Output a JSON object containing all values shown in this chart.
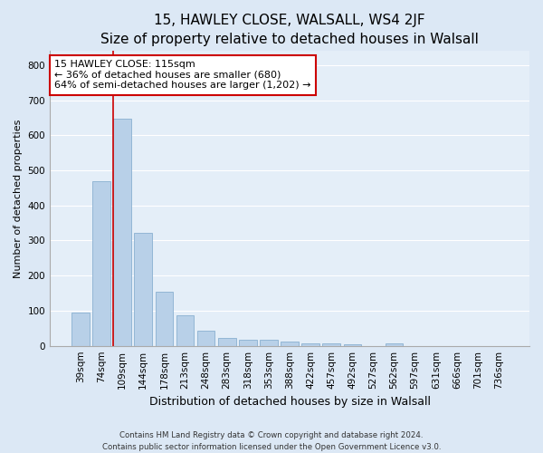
{
  "title": "15, HAWLEY CLOSE, WALSALL, WS4 2JF",
  "subtitle": "Size of property relative to detached houses in Walsall",
  "xlabel": "Distribution of detached houses by size in Walsall",
  "ylabel": "Number of detached properties",
  "categories": [
    "39sqm",
    "74sqm",
    "109sqm",
    "144sqm",
    "178sqm",
    "213sqm",
    "248sqm",
    "283sqm",
    "318sqm",
    "353sqm",
    "388sqm",
    "422sqm",
    "457sqm",
    "492sqm",
    "527sqm",
    "562sqm",
    "597sqm",
    "631sqm",
    "666sqm",
    "701sqm",
    "736sqm"
  ],
  "values": [
    95,
    468,
    648,
    323,
    155,
    88,
    42,
    22,
    18,
    18,
    13,
    8,
    8,
    5,
    0,
    7,
    0,
    0,
    0,
    0,
    0
  ],
  "bar_color": "#b8d0e8",
  "bar_edge_color": "#8ab0d0",
  "vline_color": "#cc0000",
  "annotation_text": "15 HAWLEY CLOSE: 115sqm\n← 36% of detached houses are smaller (680)\n64% of semi-detached houses are larger (1,202) →",
  "annotation_box_color": "#ffffff",
  "annotation_box_edge": "#cc0000",
  "ylim": [
    0,
    840
  ],
  "yticks": [
    0,
    100,
    200,
    300,
    400,
    500,
    600,
    700,
    800
  ],
  "background_color": "#dce8f5",
  "plot_bg_color": "#e4eef8",
  "grid_color": "#ffffff",
  "footer_line1": "Contains HM Land Registry data © Crown copyright and database right 2024.",
  "footer_line2": "Contains public sector information licensed under the Open Government Licence v3.0.",
  "title_fontsize": 11,
  "xlabel_fontsize": 9,
  "ylabel_fontsize": 8,
  "tick_fontsize": 7.5,
  "annotation_fontsize": 8
}
